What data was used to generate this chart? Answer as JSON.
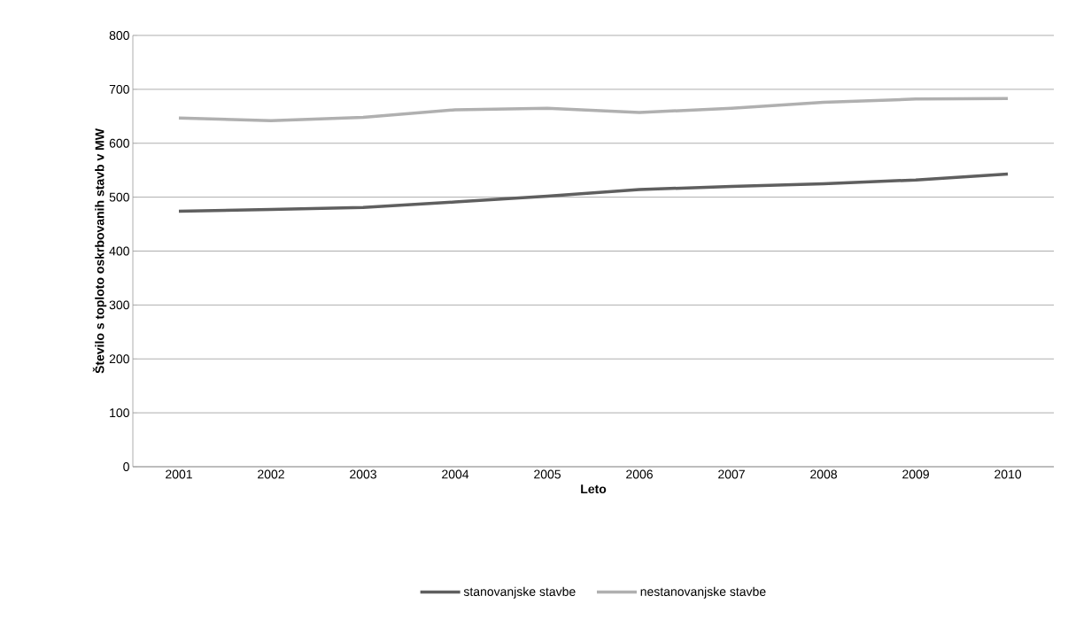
{
  "chart_data": {
    "type": "line",
    "xlabel": "Leto",
    "ylabel": "Število s toploto oskrbovanih stavb v MW",
    "categories": [
      "2001",
      "2002",
      "2003",
      "2004",
      "2005",
      "2006",
      "2007",
      "2008",
      "2009",
      "2010"
    ],
    "series": [
      {
        "name": "stanovanjske stavbe",
        "color": "#5f5f5f",
        "values": [
          474,
          477,
          481,
          491,
          502,
          514,
          520,
          525,
          532,
          543
        ]
      },
      {
        "name": "nestanovanjske stavbe",
        "color": "#b0b0b0",
        "values": [
          647,
          642,
          648,
          662,
          665,
          657,
          665,
          676,
          682,
          683
        ]
      }
    ],
    "ylim": [
      0,
      800
    ],
    "yticks": [
      0,
      100,
      200,
      300,
      400,
      500,
      600,
      700,
      800
    ],
    "grid": "y",
    "legend": "bottom",
    "marker": "none",
    "line_style": "solid"
  }
}
